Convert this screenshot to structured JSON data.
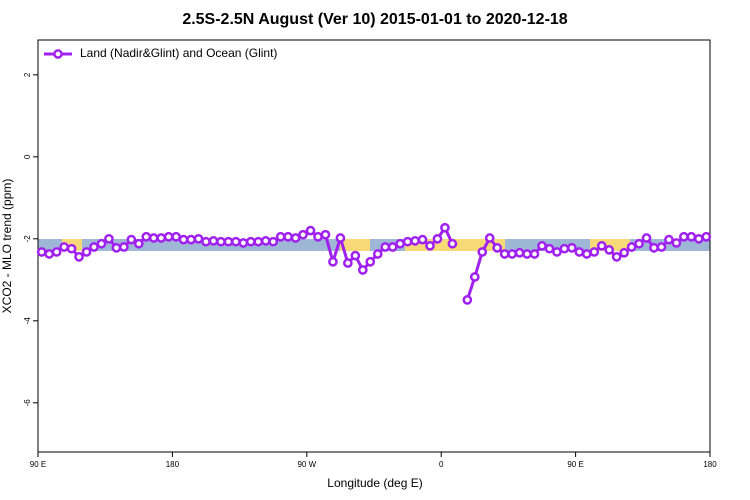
{
  "chart_data": {
    "type": "line",
    "title": "2.5S-2.5N August (Ver 10)   2015-01-01 to 2020-12-18",
    "x_label": "Longitude (deg E)",
    "y_label": "XCO2 - MLO trend (ppm)",
    "xlim": [
      90,
      540
    ],
    "ylim": [
      -7.2,
      2.85
    ],
    "xticks": [
      {
        "value": 90,
        "label": "90 E"
      },
      {
        "value": 180,
        "label": "180"
      },
      {
        "value": 270,
        "label": "90 W"
      },
      {
        "value": 360,
        "label": "0"
      },
      {
        "value": 450,
        "label": "90 E"
      },
      {
        "value": 540,
        "label": "180"
      }
    ],
    "yticks": [
      -6,
      -4,
      -2,
      0,
      2
    ],
    "legend_position": "top-left",
    "x": [
      92.5,
      97.5,
      102.5,
      107.5,
      112.5,
      117.5,
      122.5,
      127.5,
      132.5,
      137.5,
      142.5,
      147.5,
      152.5,
      157.5,
      162.5,
      167.5,
      172.5,
      177.5,
      182.5,
      187.5,
      192.5,
      197.5,
      202.5,
      207.5,
      212.5,
      217.5,
      222.5,
      227.5,
      232.5,
      237.5,
      242.5,
      247.5,
      252.5,
      257.5,
      262.5,
      267.5,
      272.5,
      277.5,
      282.5,
      287.5,
      292.5,
      297.5,
      302.5,
      307.5,
      312.5,
      317.5,
      322.5,
      327.5,
      332.5,
      337.5,
      342.5,
      347.5,
      352.5,
      357.5,
      362.5,
      367.5,
      372.5,
      377.5,
      382.5,
      387.5,
      392.5,
      397.5,
      402.5,
      407.5,
      412.5,
      417.5,
      422.5,
      427.5,
      432.5,
      437.5,
      442.5,
      447.5,
      452.5,
      457.5,
      462.5,
      467.5,
      472.5,
      477.5,
      482.5,
      487.5,
      492.5,
      497.5,
      502.5,
      507.5,
      512.5,
      517.5,
      522.5,
      527.5,
      532.5,
      537.5
    ],
    "series": [
      {
        "name": "Land (Nadir&Glint) and Ocean (Glint)",
        "color": "#a020f0",
        "values": [
          -2.32,
          -2.37,
          -2.32,
          -2.2,
          -2.24,
          -2.44,
          -2.32,
          -2.2,
          -2.12,
          -2.0,
          -2.22,
          -2.2,
          -2.02,
          -2.12,
          -1.95,
          -1.98,
          -1.98,
          -1.95,
          -1.95,
          -2.02,
          -2.02,
          -2.0,
          -2.07,
          -2.05,
          -2.07,
          -2.07,
          -2.07,
          -2.1,
          -2.07,
          -2.07,
          -2.05,
          -2.07,
          -1.95,
          -1.95,
          -1.98,
          -1.9,
          -1.8,
          -1.95,
          -1.9,
          -2.56,
          -1.98,
          -2.59,
          -2.41,
          -2.76,
          -2.56,
          -2.37,
          -2.2,
          -2.2,
          -2.12,
          -2.07,
          -2.05,
          -2.02,
          -2.17,
          -2.0,
          -1.73,
          -2.12,
          null,
          -3.49,
          -2.93,
          -2.32,
          -1.98,
          -2.22,
          -2.37,
          -2.37,
          -2.34,
          -2.37,
          -2.37,
          -2.17,
          -2.24,
          -2.32,
          -2.24,
          -2.22,
          -2.32,
          -2.37,
          -2.32,
          -2.17,
          -2.27,
          -2.44,
          -2.34,
          -2.2,
          -2.12,
          -1.98,
          -2.22,
          -2.2,
          -2.02,
          -2.1,
          -1.95,
          -1.95,
          -2.0,
          -1.95
        ]
      }
    ]
  }
}
